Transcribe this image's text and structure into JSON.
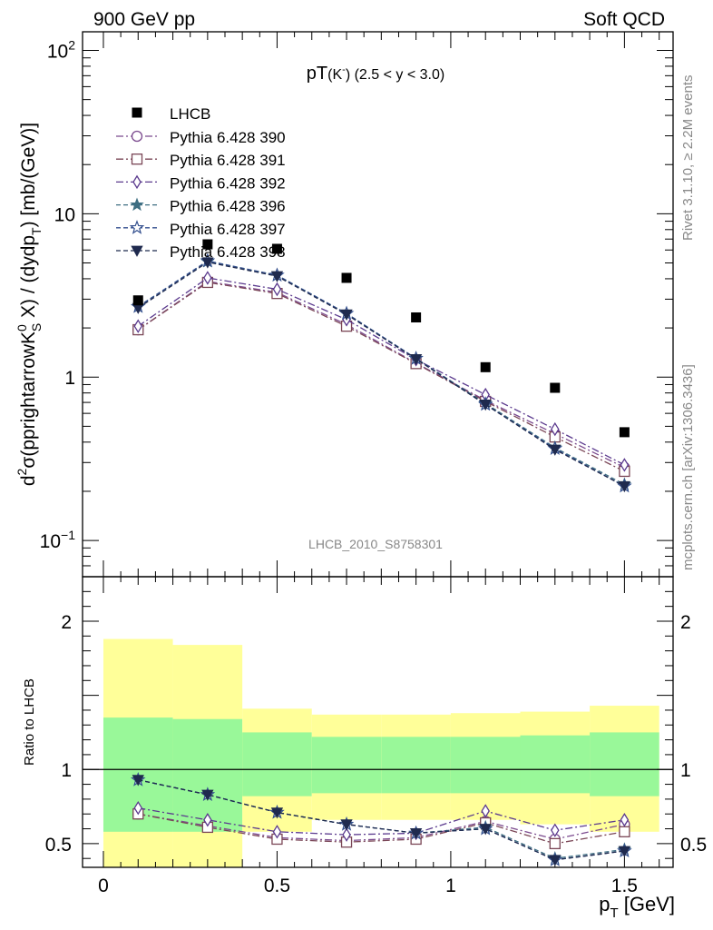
{
  "header": {
    "left": "900 GeV pp",
    "right": "Soft QCD"
  },
  "side_labels": {
    "upper": "Rivet 3.1.10, ≥ 2.2M events",
    "lower": "mcplots.cern.ch [arXiv:1306.3436]"
  },
  "main": {
    "title": "pT(Kˉ) (2.5 < y < 3.0)",
    "ylabel": "d²σ(pprightarrowK⁰S X) / (dydpₜ) [mb/(GeV)]",
    "watermark": "LHCB_2010_S8758301",
    "yticks": [
      {
        "label": "10",
        "sup": "2",
        "v": 100
      },
      {
        "label": "10",
        "sup": "",
        "v": 10
      },
      {
        "label": "1",
        "sup": "",
        "v": 1
      },
      {
        "label": "10",
        "sup": "−1",
        "v": 0.1
      }
    ]
  },
  "ratio": {
    "ylabel": "Ratio to LHCB",
    "yticks": [
      {
        "label": "2",
        "v": 2
      },
      {
        "label": "1",
        "v": 1
      },
      {
        "label": "0.5",
        "v": 0.5
      }
    ]
  },
  "xaxis": {
    "label": "pₜ [GeV]",
    "ticks": [
      {
        "label": "0",
        "v": 0
      },
      {
        "label": "0.5",
        "v": 0.5
      },
      {
        "label": "1",
        "v": 1
      },
      {
        "label": "1.5",
        "v": 1.5
      }
    ]
  },
  "chart_data": {
    "type": "scatter",
    "xlim": [
      -0.06,
      1.64
    ],
    "ylim_main": [
      0.06,
      130
    ],
    "ylim_ratio": [
      0.34,
      2.3
    ],
    "log_y_main": true,
    "x": [
      0.1,
      0.3,
      0.5,
      0.7,
      0.9,
      1.1,
      1.3,
      1.5
    ],
    "data": {
      "name": "LHCB",
      "values": [
        2.95,
        6.5,
        6.1,
        4.05,
        2.32,
        1.15,
        0.86,
        0.46
      ]
    },
    "series": [
      {
        "name": "Pythia 6.428 390",
        "color": "#7b4a8e",
        "marker": "circle",
        "dash": "dashdot",
        "values": [
          1.95,
          3.85,
          3.3,
          2.1,
          1.22,
          0.72,
          0.45,
          0.28
        ],
        "ratio": [
          0.7,
          0.62,
          0.54,
          0.52,
          0.54,
          0.65,
          0.53,
          0.63
        ]
      },
      {
        "name": "Pythia 6.428 391",
        "color": "#7a4656",
        "marker": "square",
        "dash": "dashdot",
        "values": [
          1.95,
          3.8,
          3.25,
          2.05,
          1.21,
          0.71,
          0.43,
          0.265
        ],
        "ratio": [
          0.7,
          0.61,
          0.53,
          0.51,
          0.53,
          0.64,
          0.5,
          0.58
        ]
      },
      {
        "name": "Pythia 6.428 392",
        "color": "#5b3a8e",
        "marker": "diamond",
        "dash": "dashdot",
        "values": [
          2.05,
          4.05,
          3.45,
          2.25,
          1.28,
          0.78,
          0.48,
          0.29
        ],
        "ratio": [
          0.74,
          0.66,
          0.58,
          0.56,
          0.57,
          0.72,
          0.59,
          0.66
        ]
      },
      {
        "name": "Pythia 6.428 396",
        "color": "#3e6e82",
        "marker": "star",
        "dash": "dashed",
        "values": [
          2.7,
          5.1,
          4.2,
          2.45,
          1.3,
          0.69,
          0.37,
          0.22
        ],
        "ratio": [
          0.93,
          0.83,
          0.71,
          0.63,
          0.57,
          0.61,
          0.4,
          0.46
        ]
      },
      {
        "name": "Pythia 6.428 397",
        "color": "#334f8e",
        "marker": "star-open",
        "dash": "dashed",
        "values": [
          2.7,
          5.15,
          4.2,
          2.45,
          1.3,
          0.68,
          0.365,
          0.215
        ],
        "ratio": [
          0.93,
          0.83,
          0.71,
          0.63,
          0.57,
          0.6,
          0.39,
          0.45
        ]
      },
      {
        "name": "Pythia 6.428 398",
        "color": "#1f2a4e",
        "marker": "triangle-down",
        "dash": "dashed",
        "values": [
          2.65,
          5.05,
          4.15,
          2.42,
          1.29,
          0.68,
          0.36,
          0.215
        ],
        "ratio": [
          0.93,
          0.83,
          0.71,
          0.63,
          0.57,
          0.6,
          0.39,
          0.45
        ]
      }
    ],
    "bands": {
      "edges": [
        0.0,
        0.2,
        0.4,
        0.6,
        0.8,
        1.0,
        1.2,
        1.4,
        1.6
      ],
      "inner_color": "#99f899",
      "outer_color": "#ffff99",
      "inner_low": [
        0.58,
        0.58,
        0.82,
        0.84,
        0.84,
        0.84,
        0.84,
        0.82
      ],
      "inner_high": [
        1.35,
        1.34,
        1.25,
        1.22,
        1.22,
        1.22,
        1.23,
        1.25
      ],
      "outer_low": [
        0.34,
        0.34,
        0.58,
        0.66,
        0.66,
        0.66,
        0.63,
        0.58
      ],
      "outer_high": [
        1.88,
        1.84,
        1.41,
        1.37,
        1.37,
        1.38,
        1.39,
        1.43
      ]
    }
  }
}
